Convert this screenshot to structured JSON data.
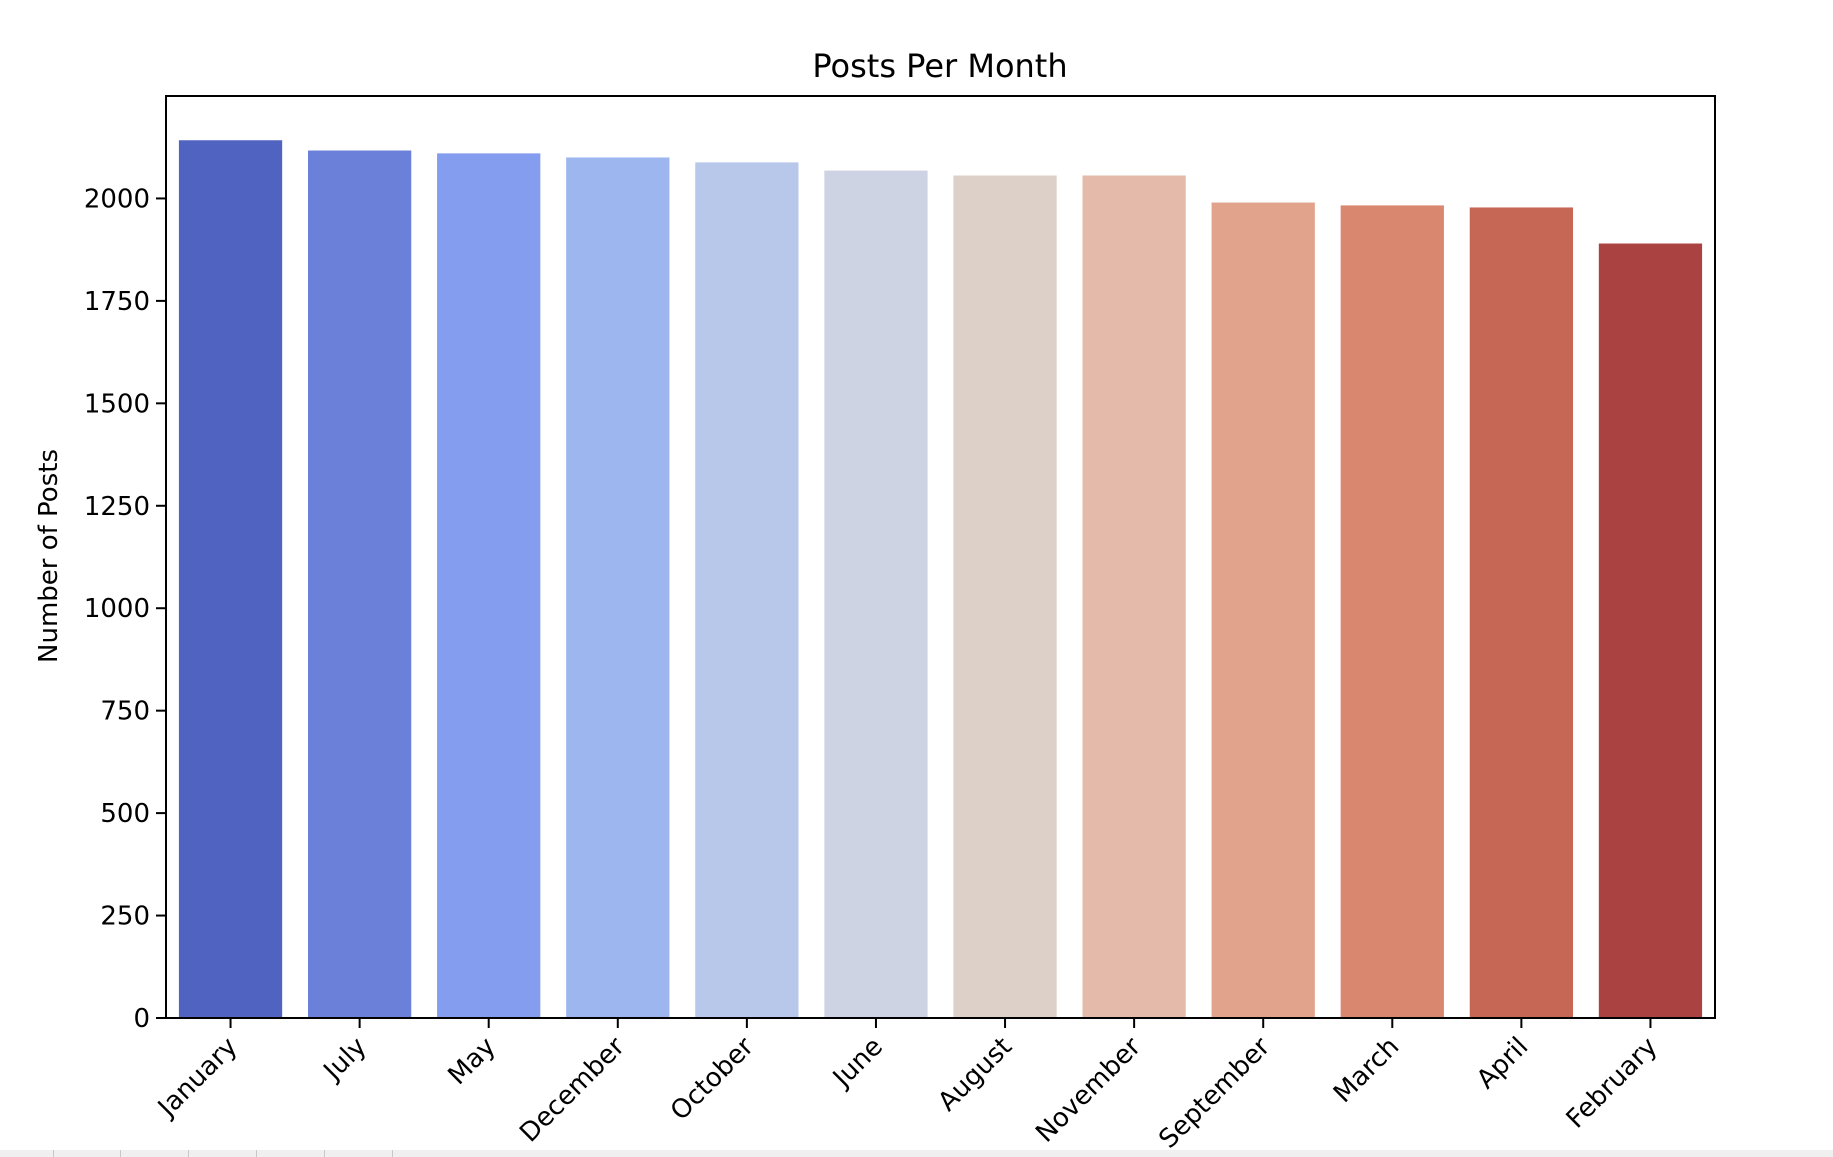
{
  "chart_data": {
    "type": "bar",
    "title": "Posts Per Month",
    "xlabel": "",
    "ylabel": "Number of Posts",
    "categories": [
      "January",
      "July",
      "May",
      "December",
      "October",
      "June",
      "August",
      "November",
      "September",
      "March",
      "April",
      "February"
    ],
    "values": [
      2142,
      2117,
      2110,
      2100,
      2088,
      2068,
      2056,
      2056,
      1990,
      1983,
      1978,
      1890
    ],
    "colors": [
      "#5163c1",
      "#6b81d9",
      "#849def",
      "#9db6ef",
      "#b8c8eb",
      "#cdd3e2",
      "#ddd0c8",
      "#e4bbaa",
      "#e2a38c",
      "#da8770",
      "#c66756",
      "#a94240"
    ],
    "yticks": [
      0,
      250,
      500,
      750,
      1000,
      1250,
      1500,
      1750,
      2000
    ],
    "ylim": [
      0,
      2250
    ],
    "grid": false,
    "legend": "none"
  }
}
